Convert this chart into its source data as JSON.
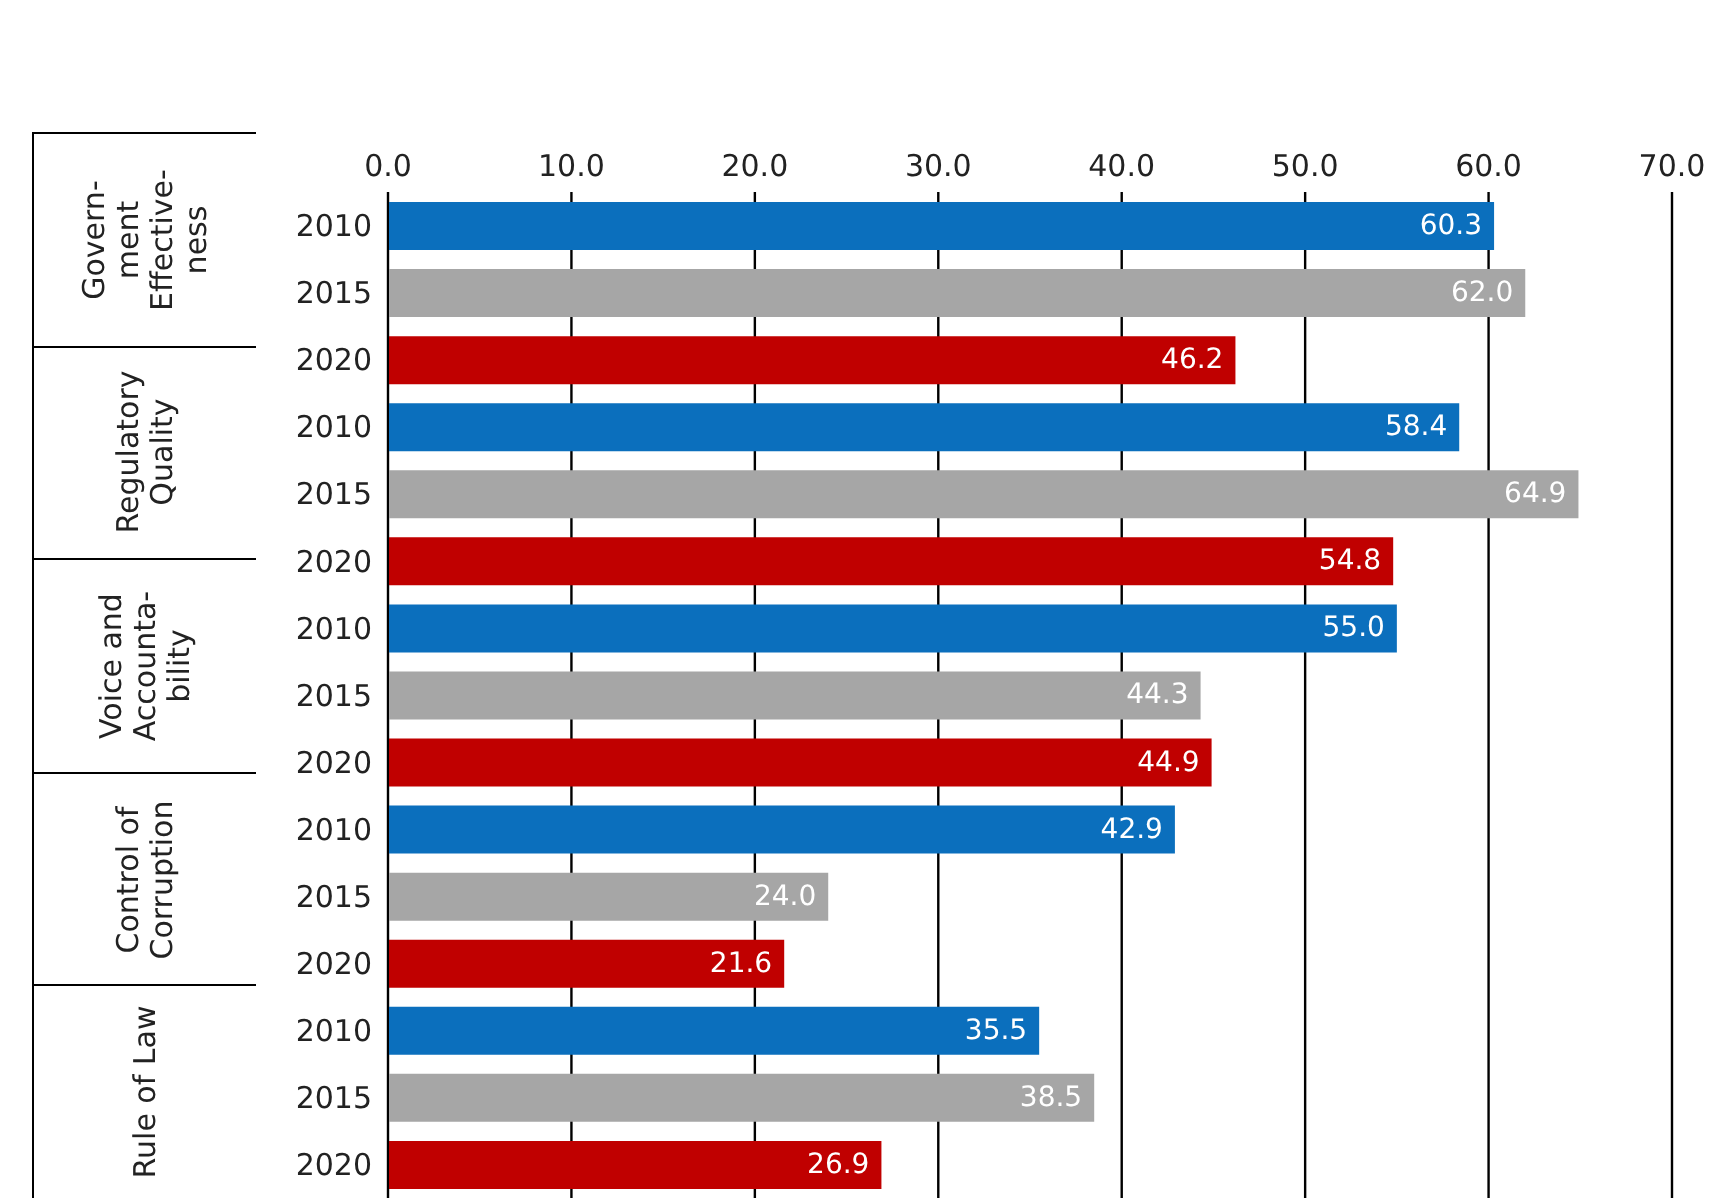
{
  "chart_data": {
    "type": "bar",
    "orientation": "horizontal",
    "categories": [
      "2010",
      "2015",
      "2020",
      "2010",
      "2015",
      "2020",
      "2010",
      "2015",
      "2020",
      "2010",
      "2015",
      "2020",
      "2010",
      "2015",
      "2020"
    ],
    "values": [
      60.3,
      62.0,
      46.2,
      58.4,
      64.9,
      54.8,
      55.0,
      44.3,
      44.9,
      42.9,
      24.0,
      21.6,
      35.5,
      38.5,
      26.9
    ],
    "value_labels": [
      "60.3",
      "62.0",
      "46.2",
      "58.4",
      "64.9",
      "54.8",
      "55.0",
      "44.3",
      "44.9",
      "42.9",
      "24.0",
      "21.6",
      "35.5",
      "38.5",
      "26.9"
    ],
    "colors": [
      "#0b6fbd",
      "#a6a6a6",
      "#c00000",
      "#0b6fbd",
      "#a6a6a6",
      "#c00000",
      "#0b6fbd",
      "#a6a6a6",
      "#c00000",
      "#0b6fbd",
      "#a6a6a6",
      "#c00000",
      "#0b6fbd",
      "#a6a6a6",
      "#c00000"
    ],
    "xlim": [
      0,
      70
    ],
    "xticks": [
      {
        "value": 0,
        "label": "0.0"
      },
      {
        "value": 10,
        "label": "10.0"
      },
      {
        "value": 20,
        "label": "20.0"
      },
      {
        "value": 30,
        "label": "30.0"
      },
      {
        "value": 40,
        "label": "40.0"
      },
      {
        "value": 50,
        "label": "50.0"
      },
      {
        "value": 60,
        "label": "60.0"
      },
      {
        "value": 70,
        "label": "70.0"
      }
    ],
    "grid": "x",
    "annotations": [
      "Govern-\nment\nEffective-\nness",
      "Regulatory\nQuality",
      "Voice and\nAccounta-\nbility",
      "Control of\nCorruption",
      "Rule of Law"
    ]
  }
}
